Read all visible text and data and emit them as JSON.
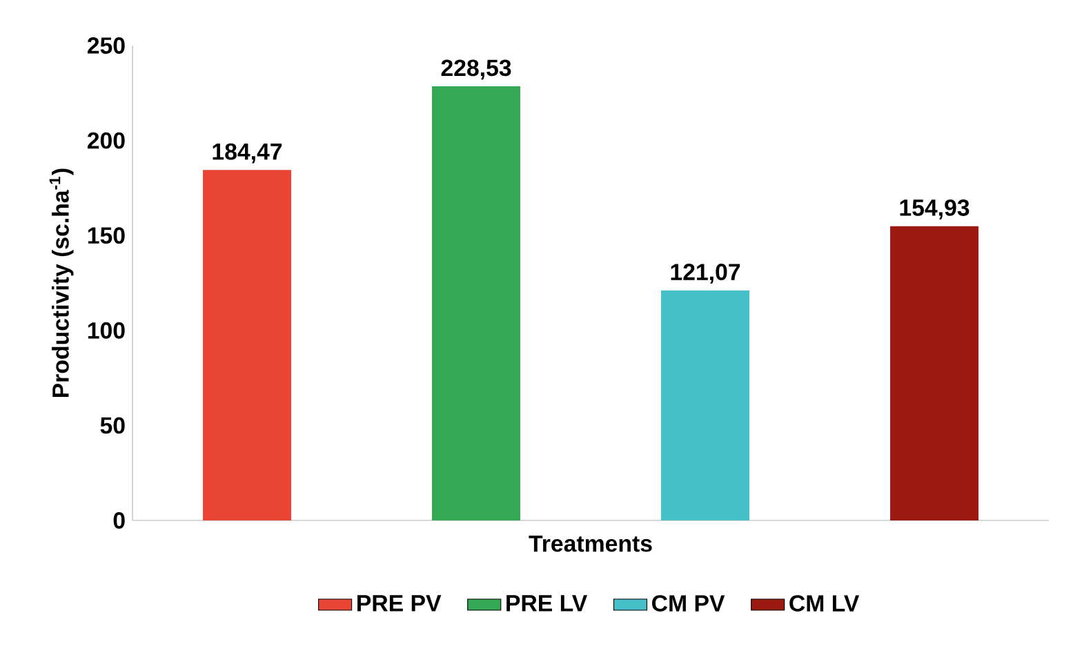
{
  "chart_data": {
    "type": "bar",
    "xlabel": "Treatments",
    "ylabel": "Productivity (sc.ha$^{-1}$)",
    "categories": [
      null,
      null,
      null,
      null
    ],
    "series": [
      {
        "name": "PRE PV",
        "color": "#e94535",
        "values": [
          184.47,
          null,
          null,
          null
        ],
        "value_labels": [
          "184,47",
          null,
          null,
          null
        ]
      },
      {
        "name": "PRE LV",
        "color": "#34a853",
        "values": [
          null,
          228.53,
          null,
          null
        ],
        "value_labels": [
          null,
          "228,53",
          null,
          null
        ]
      },
      {
        "name": "CM PV",
        "color": "#45bfc8",
        "values": [
          null,
          null,
          121.07,
          null
        ],
        "value_labels": [
          null,
          null,
          "121,07",
          null
        ]
      },
      {
        "name": "CM LV",
        "color": "#9b1b13",
        "values": [
          null,
          null,
          null,
          154.93
        ],
        "value_labels": [
          null,
          null,
          null,
          "154,93"
        ]
      }
    ],
    "ylim": [
      0,
      250
    ],
    "yticks": [
      0,
      50,
      100,
      150,
      200,
      250
    ],
    "legend": "bottom"
  }
}
